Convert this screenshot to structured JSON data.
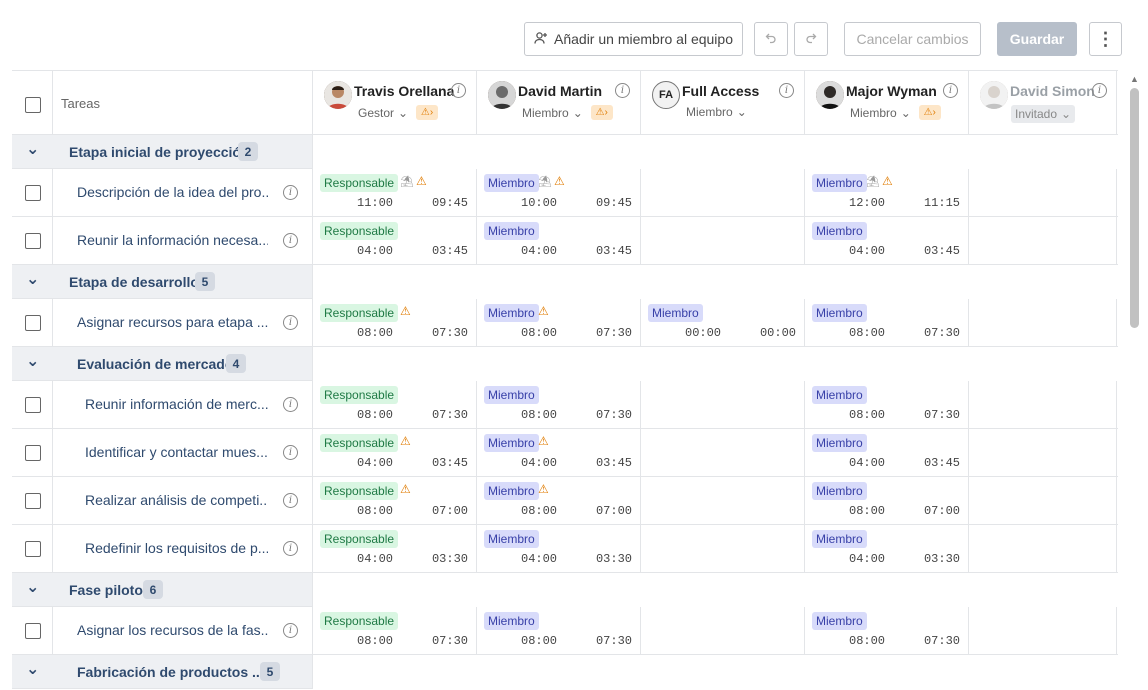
{
  "toolbar": {
    "add_member": "Añadir un miembro al equipo",
    "cancel": "Cancelar cambios",
    "save": "Guardar",
    "more": "⋮"
  },
  "header": {
    "tasks": "Tareas"
  },
  "members": [
    {
      "name": "Travis Orellana",
      "role": "Gestor",
      "warning": true,
      "avatar": "photo"
    },
    {
      "name": "David Martin",
      "role": "Miembro",
      "warning": true,
      "avatar": "photo"
    },
    {
      "name": "Full Access",
      "role": "Miembro",
      "warning": false,
      "avatar": "FA"
    },
    {
      "name": "Major Wyman",
      "role": "Miembro",
      "warning": true,
      "avatar": "photo"
    },
    {
      "name": "David Simon",
      "role": "Invitado",
      "warning": false,
      "avatar": "photo"
    }
  ],
  "groups": {
    "g1": {
      "name": "Etapa inicial de proyección",
      "count": "2"
    },
    "g2": {
      "name": "Etapa de desarrollo",
      "count": "5"
    },
    "g3": {
      "name": "Evaluación de mercado",
      "count": "4"
    },
    "g4": {
      "name": "Fase piloto",
      "count": "6"
    },
    "g5": {
      "name": "Fabricación de productos ...",
      "count": "5"
    }
  },
  "tasks": [
    {
      "name": "Descripción de la idea del pro...",
      "cells": [
        {
          "tag": "Responsable",
          "type": "resp",
          "t1": "11:00",
          "t2": "09:45",
          "vac": true,
          "warn": true
        },
        {
          "tag": "Miembro",
          "type": "memb",
          "t1": "10:00",
          "t2": "09:45",
          "vac": true,
          "warn": true
        },
        null,
        {
          "tag": "Miembro",
          "type": "memb",
          "t1": "12:00",
          "t2": "11:15",
          "vac": true,
          "warn": true
        },
        null
      ]
    },
    {
      "name": "Reunir la información necesa...",
      "cells": [
        {
          "tag": "Responsable",
          "type": "resp",
          "t1": "04:00",
          "t2": "03:45"
        },
        {
          "tag": "Miembro",
          "type": "memb",
          "t1": "04:00",
          "t2": "03:45"
        },
        null,
        {
          "tag": "Miembro",
          "type": "memb",
          "t1": "04:00",
          "t2": "03:45"
        },
        null
      ]
    },
    {
      "name": "Asignar recursos para etapa ...",
      "cells": [
        {
          "tag": "Responsable",
          "type": "resp",
          "t1": "08:00",
          "t2": "07:30",
          "warn": true
        },
        {
          "tag": "Miembro",
          "type": "memb",
          "t1": "08:00",
          "t2": "07:30",
          "warn": true
        },
        {
          "tag": "Miembro",
          "type": "memb",
          "t1": "00:00",
          "t2": "00:00"
        },
        {
          "tag": "Miembro",
          "type": "memb",
          "t1": "08:00",
          "t2": "07:30"
        },
        null
      ]
    },
    {
      "name": "Reunir información de merc...",
      "cells": [
        {
          "tag": "Responsable",
          "type": "resp",
          "t1": "08:00",
          "t2": "07:30"
        },
        {
          "tag": "Miembro",
          "type": "memb",
          "t1": "08:00",
          "t2": "07:30"
        },
        null,
        {
          "tag": "Miembro",
          "type": "memb",
          "t1": "08:00",
          "t2": "07:30"
        },
        null
      ]
    },
    {
      "name": "Identificar y contactar mues...",
      "cells": [
        {
          "tag": "Responsable",
          "type": "resp",
          "t1": "04:00",
          "t2": "03:45",
          "warn": true
        },
        {
          "tag": "Miembro",
          "type": "memb",
          "t1": "04:00",
          "t2": "03:45",
          "warn": true
        },
        null,
        {
          "tag": "Miembro",
          "type": "memb",
          "t1": "04:00",
          "t2": "03:45"
        },
        null
      ]
    },
    {
      "name": "Realizar análisis de competi...",
      "cells": [
        {
          "tag": "Responsable",
          "type": "resp",
          "t1": "08:00",
          "t2": "07:00",
          "warn": true
        },
        {
          "tag": "Miembro",
          "type": "memb",
          "t1": "08:00",
          "t2": "07:00",
          "warn": true
        },
        null,
        {
          "tag": "Miembro",
          "type": "memb",
          "t1": "08:00",
          "t2": "07:00"
        },
        null
      ]
    },
    {
      "name": "Redefinir los requisitos de p...",
      "cells": [
        {
          "tag": "Responsable",
          "type": "resp",
          "t1": "04:00",
          "t2": "03:30"
        },
        {
          "tag": "Miembro",
          "type": "memb",
          "t1": "04:00",
          "t2": "03:30"
        },
        null,
        {
          "tag": "Miembro",
          "type": "memb",
          "t1": "04:00",
          "t2": "03:30"
        },
        null
      ]
    },
    {
      "name": "Asignar los recursos de la fas...",
      "cells": [
        {
          "tag": "Responsable",
          "type": "resp",
          "t1": "08:00",
          "t2": "07:30"
        },
        {
          "tag": "Miembro",
          "type": "memb",
          "t1": "08:00",
          "t2": "07:30"
        },
        null,
        {
          "tag": "Miembro",
          "type": "memb",
          "t1": "08:00",
          "t2": "07:30"
        },
        null
      ]
    }
  ]
}
